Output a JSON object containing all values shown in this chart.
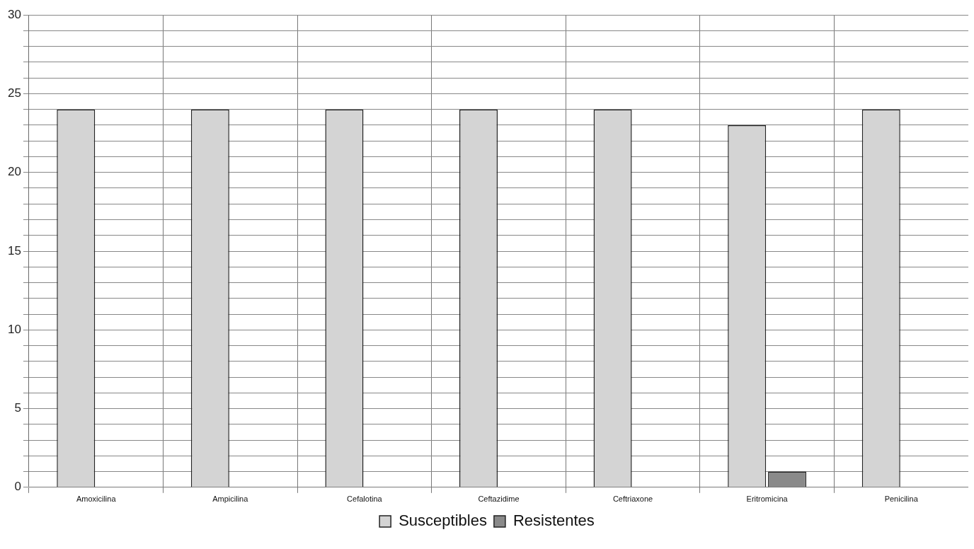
{
  "chart_data": {
    "type": "bar",
    "categories": [
      "Amoxicilina",
      "Ampicilina",
      "Cefalotina",
      "Ceftazidime",
      "Ceftriaxone",
      "Eritromicina",
      "Penicilina"
    ],
    "series": [
      {
        "name": "Susceptibles",
        "color": "#d4d4d4",
        "values": [
          24,
          24,
          24,
          24,
          24,
          23,
          24
        ]
      },
      {
        "name": "Resistentes",
        "color": "#8a8a8a",
        "values": [
          0,
          0,
          0,
          0,
          0,
          1,
          0
        ]
      }
    ],
    "ylim": [
      0,
      30
    ],
    "yticks": [
      0,
      {
        "value": 1,
        "label": null
      },
      {
        "value": 2,
        "label": null
      },
      {
        "value": 3,
        "label": null
      },
      {
        "value": 4,
        "label": null
      },
      5,
      {
        "value": 6,
        "label": null
      },
      {
        "value": 7,
        "label": null
      },
      {
        "value": 8,
        "label": null
      },
      {
        "value": 9,
        "label": null
      },
      10,
      {
        "value": 11,
        "label": null
      },
      {
        "value": 12,
        "label": null
      },
      {
        "value": 13,
        "label": null
      },
      {
        "value": 14,
        "label": null
      },
      15,
      {
        "value": 16,
        "label": null
      },
      {
        "value": 17,
        "label": null
      },
      {
        "value": 18,
        "label": null
      },
      {
        "value": 19,
        "label": null
      },
      20,
      {
        "value": 21,
        "label": null
      },
      {
        "value": 22,
        "label": null
      },
      {
        "value": 23,
        "label": null
      },
      {
        "value": 24,
        "label": null
      },
      25,
      {
        "value": 26,
        "label": null
      },
      {
        "value": 27,
        "label": null
      },
      {
        "value": 28,
        "label": null
      },
      {
        "value": 29,
        "label": null
      },
      30
    ],
    "grid": true,
    "legend": "bottom"
  }
}
